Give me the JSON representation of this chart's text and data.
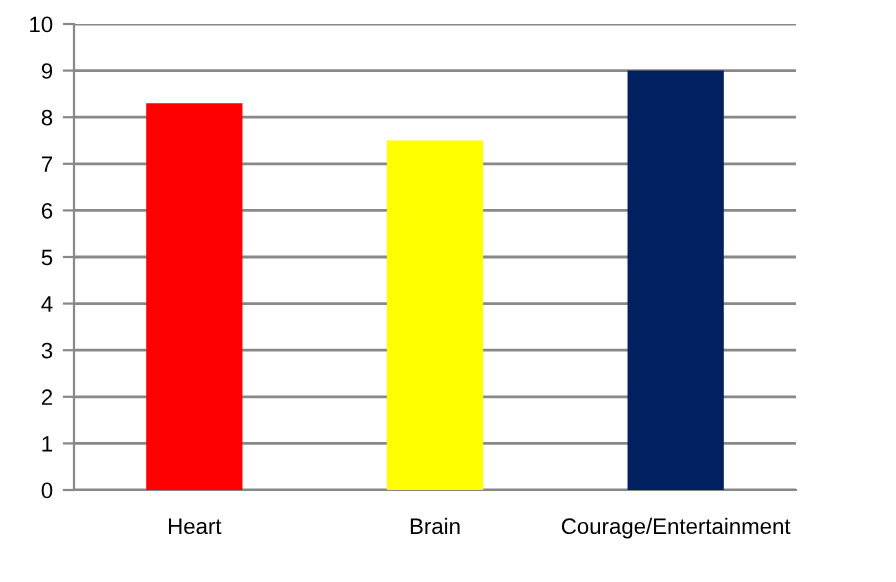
{
  "chart_data": {
    "type": "bar",
    "categories": [
      "Heart",
      "Brain",
      "Courage/Entertainment"
    ],
    "values": [
      8.3,
      7.5,
      9.0
    ],
    "colors": [
      "#ff0000",
      "#ffff00",
      "#002060"
    ],
    "ylim": [
      0,
      10
    ],
    "yticks": [
      0,
      1,
      2,
      3,
      4,
      5,
      6,
      7,
      8,
      9,
      10
    ],
    "grid": "y",
    "legend": false
  }
}
